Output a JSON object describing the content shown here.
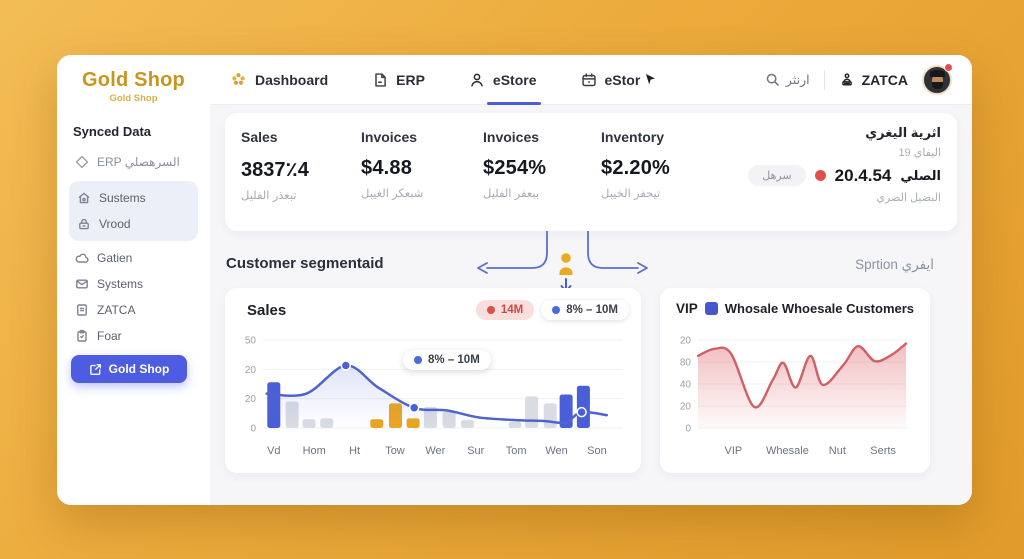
{
  "sidebar": {
    "logo_title": "Gold Shop",
    "logo_subtitle": "Gold Shop",
    "section_title": "Synced Data",
    "erp_label": "ERP السرهصلي",
    "items": [
      {
        "label": "Sustems",
        "icon": "home-icon"
      },
      {
        "label": "Vrood",
        "icon": "lock-icon"
      },
      {
        "label": "Gatien",
        "icon": "cloud-icon"
      },
      {
        "label": "Systems",
        "icon": "mail-icon"
      },
      {
        "label": "ZATCA",
        "icon": "document-icon"
      },
      {
        "label": "Foar",
        "icon": "clipboard-icon"
      }
    ],
    "cta_label": "Gold Shop"
  },
  "topbar": {
    "nav": [
      {
        "label": "Dashboard",
        "icon": "flower-icon",
        "active": false
      },
      {
        "label": "ERP",
        "icon": "file-icon",
        "active": false
      },
      {
        "label": "eStore",
        "icon": "person-icon",
        "active": true
      },
      {
        "label": "eStor",
        "icon": "calendar-icon",
        "active": false
      }
    ],
    "search_label": "ارنثر",
    "zatca_label": "ZATCA"
  },
  "stats": {
    "cards": [
      {
        "label": "Sales",
        "value": "3837٪4",
        "sub": "تبعذر الفليل"
      },
      {
        "label": "Invoices",
        "value": "$4.88",
        "sub": "شبعكر الغيبل"
      },
      {
        "label": "Invoices",
        "value": "$254%",
        "sub": "ببعفر الفليل"
      },
      {
        "label": "Inventory",
        "value": "$2.20%",
        "sub": "تيحفر الخيبل"
      }
    ],
    "rtl": {
      "title": "اثرية اليغري",
      "line2": "اليفاي 19",
      "value_label": "الصلي",
      "value": "20.4.54",
      "pill": "سرهل",
      "line4": "البضيل الضري"
    }
  },
  "section": {
    "left_title": "Customer segmentaid",
    "right_title": "Sprtion ايفري"
  },
  "colors": {
    "accent_blue": "#4a5fd7",
    "accent_gold": "#eba522",
    "bar_gray": "#d9dce3",
    "area_red": "#cf6066",
    "brand_gold": "#c8961e"
  },
  "chart_data": [
    {
      "type": "bar+line",
      "title": "Sales",
      "legend": [
        {
          "label": "14M",
          "color": "#d8504b",
          "style": "red-pill"
        },
        {
          "label": "8% – 10M",
          "color": "#4a6bdc",
          "style": "white-pill"
        }
      ],
      "tooltip": "8% – 10M",
      "y_ticks": [
        "50",
        "20",
        "20",
        "0"
      ],
      "ylim": [
        0,
        50
      ],
      "categories": [
        "Vd",
        "Hom",
        "Ht",
        "Tow",
        "Wer",
        "Sur",
        "Tom",
        "Wen",
        "Son"
      ],
      "bars": [
        {
          "x": 0.03,
          "v": 26.0,
          "color": "blue"
        },
        {
          "x": 0.081,
          "v": 15.0,
          "color": "gray"
        },
        {
          "x": 0.128,
          "v": 5.0,
          "color": "gray"
        },
        {
          "x": 0.177,
          "v": 5.5,
          "color": "gray"
        },
        {
          "x": 0.316,
          "v": 5.0,
          "color": "gold"
        },
        {
          "x": 0.368,
          "v": 14.0,
          "color": "gold"
        },
        {
          "x": 0.417,
          "v": 5.5,
          "color": "gold"
        },
        {
          "x": 0.465,
          "v": 12.0,
          "color": "gray"
        },
        {
          "x": 0.517,
          "v": 9.5,
          "color": "gray"
        },
        {
          "x": 0.568,
          "v": 4.5,
          "color": "gray"
        },
        {
          "x": 0.7,
          "v": 3.5,
          "color": "gray"
        },
        {
          "x": 0.746,
          "v": 18.0,
          "color": "gray"
        },
        {
          "x": 0.798,
          "v": 14.0,
          "color": "gray"
        },
        {
          "x": 0.842,
          "v": 19.0,
          "color": "blue"
        },
        {
          "x": 0.89,
          "v": 24.0,
          "color": "blue"
        }
      ],
      "line": {
        "points": [
          [
            0.01,
            19.5
          ],
          [
            0.12,
            19.5
          ],
          [
            0.23,
            35.5
          ],
          [
            0.32,
            23.0
          ],
          [
            0.42,
            11.5
          ],
          [
            0.51,
            10.0
          ],
          [
            0.6,
            6.0
          ],
          [
            0.7,
            4.5
          ],
          [
            0.78,
            4.0
          ],
          [
            0.84,
            3.2
          ],
          [
            0.885,
            9.0
          ],
          [
            0.955,
            7.3
          ]
        ],
        "dots": [
          [
            0.23,
            35.5
          ],
          [
            0.42,
            11.5
          ],
          [
            0.885,
            9.0
          ]
        ]
      }
    },
    {
      "type": "area",
      "title_prefix": "VIP",
      "title": "Whosale Whoesale Customers",
      "y_ticks": [
        "20",
        "80",
        "40",
        "20",
        "0"
      ],
      "ylim": [
        0,
        100
      ],
      "categories": [
        "VIP",
        "Whesale",
        "Nut",
        "Serts"
      ],
      "points": [
        [
          0.0,
          82
        ],
        [
          0.08,
          90
        ],
        [
          0.16,
          84
        ],
        [
          0.27,
          24
        ],
        [
          0.36,
          55
        ],
        [
          0.41,
          74
        ],
        [
          0.47,
          46
        ],
        [
          0.54,
          82
        ],
        [
          0.6,
          49
        ],
        [
          0.7,
          72
        ],
        [
          0.77,
          93
        ],
        [
          0.85,
          76
        ],
        [
          0.93,
          83
        ],
        [
          1.0,
          96
        ]
      ]
    }
  ]
}
